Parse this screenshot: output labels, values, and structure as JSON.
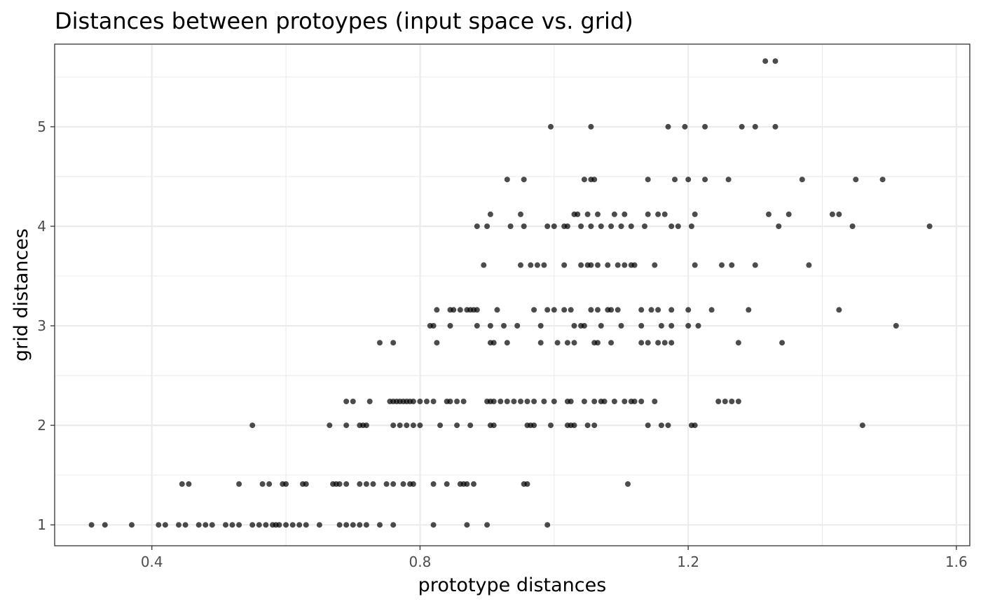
{
  "chart_data": {
    "type": "scatter",
    "title": "Distances between protoypes (input space vs. grid)",
    "xlabel": "prototype distances",
    "ylabel": "grid distances",
    "xlim": [
      0.255,
      1.62
    ],
    "ylim": [
      0.79,
      5.83
    ],
    "x_ticks": [
      0.4,
      0.8,
      1.2,
      1.6
    ],
    "x_tick_labels": [
      "0.4",
      "0.8",
      "1.2",
      "1.6"
    ],
    "y_ticks": [
      1,
      2,
      3,
      4,
      5
    ],
    "y_tick_labels": [
      "1",
      "2",
      "3",
      "4",
      "5"
    ],
    "grid": true,
    "point_color": "#000000",
    "point_opacity": 0.7,
    "series": [
      {
        "x": [
          0.31,
          0.33,
          0.37,
          0.41,
          0.42,
          0.44,
          0.45,
          0.47,
          0.48,
          0.49,
          0.51,
          0.52,
          0.53,
          0.55,
          0.56,
          0.57,
          0.58,
          0.585,
          0.59,
          0.6,
          0.61,
          0.62,
          0.63,
          0.65,
          0.68,
          0.69,
          0.7,
          0.71,
          0.72,
          0.74,
          0.76,
          0.82,
          0.87,
          0.9,
          0.99,
          0.445,
          0.455,
          0.53,
          0.565,
          0.575,
          0.595,
          0.6,
          0.625,
          0.63,
          0.67,
          0.675,
          0.68,
          0.69,
          0.71,
          0.72,
          0.73,
          0.75,
          0.76,
          0.775,
          0.785,
          0.79,
          0.82,
          0.84,
          0.86,
          0.865,
          0.87,
          0.88,
          0.955,
          0.96,
          1.11,
          0.55,
          0.665,
          0.69,
          0.71,
          0.715,
          0.72,
          0.76,
          0.77,
          0.78,
          0.79,
          0.8,
          0.83,
          0.855,
          0.875,
          0.905,
          0.91,
          0.96,
          0.965,
          0.97,
          0.995,
          1.02,
          1.025,
          1.03,
          1.05,
          1.06,
          1.14,
          1.16,
          1.17,
          1.205,
          1.21,
          1.46,
          0.69,
          0.7,
          0.725,
          0.755,
          0.76,
          0.765,
          0.77,
          0.775,
          0.78,
          0.785,
          0.79,
          0.8,
          0.81,
          0.82,
          0.84,
          0.845,
          0.855,
          0.865,
          0.9,
          0.905,
          0.91,
          0.92,
          0.93,
          0.94,
          0.95,
          0.96,
          0.97,
          0.985,
          1.0,
          1.02,
          1.025,
          1.045,
          1.06,
          1.07,
          1.075,
          1.09,
          1.105,
          1.115,
          1.12,
          1.13,
          1.15,
          1.245,
          1.255,
          1.265,
          1.275,
          0.74,
          0.76,
          0.825,
          0.905,
          0.91,
          0.93,
          0.98,
          1.005,
          1.02,
          1.03,
          1.06,
          1.065,
          1.085,
          1.13,
          1.14,
          1.155,
          1.165,
          1.175,
          1.275,
          1.34,
          0.815,
          0.82,
          0.845,
          0.885,
          0.905,
          0.925,
          0.945,
          0.98,
          1.03,
          1.04,
          1.045,
          1.07,
          1.1,
          1.13,
          1.16,
          1.175,
          1.2,
          1.215,
          1.51,
          0.825,
          0.845,
          0.85,
          0.86,
          0.87,
          0.875,
          0.88,
          0.885,
          0.915,
          0.97,
          0.99,
          1.0,
          1.015,
          1.025,
          1.055,
          1.065,
          1.08,
          1.085,
          1.095,
          1.13,
          1.145,
          1.155,
          1.175,
          1.2,
          1.235,
          1.29,
          1.425,
          0.895,
          0.95,
          0.965,
          0.975,
          0.985,
          1.015,
          1.04,
          1.05,
          1.055,
          1.065,
          1.08,
          1.095,
          1.105,
          1.115,
          1.12,
          1.15,
          1.21,
          1.25,
          1.265,
          1.3,
          1.38,
          0.885,
          0.9,
          0.935,
          0.955,
          0.99,
          1.0,
          1.015,
          1.02,
          1.04,
          1.055,
          1.07,
          1.085,
          1.1,
          1.115,
          1.135,
          1.175,
          1.185,
          1.205,
          1.335,
          1.445,
          1.56,
          0.905,
          0.95,
          1.03,
          1.035,
          1.05,
          1.065,
          1.09,
          1.105,
          1.14,
          1.155,
          1.165,
          1.21,
          1.32,
          1.35,
          1.415,
          1.425,
          0.93,
          0.955,
          1.045,
          1.055,
          1.06,
          1.14,
          1.18,
          1.2,
          1.225,
          1.26,
          1.37,
          1.45,
          1.49,
          0.995,
          1.055,
          1.17,
          1.195,
          1.225,
          1.28,
          1.3,
          1.33,
          1.315,
          1.33
        ],
        "y": [
          1,
          1,
          1,
          1,
          1,
          1,
          1,
          1,
          1,
          1,
          1,
          1,
          1,
          1,
          1,
          1,
          1,
          1,
          1,
          1,
          1,
          1,
          1,
          1,
          1,
          1,
          1,
          1,
          1,
          1,
          1,
          1,
          1,
          1,
          1,
          1.41,
          1.41,
          1.41,
          1.41,
          1.41,
          1.41,
          1.41,
          1.41,
          1.41,
          1.41,
          1.41,
          1.41,
          1.41,
          1.41,
          1.41,
          1.41,
          1.41,
          1.41,
          1.41,
          1.41,
          1.41,
          1.41,
          1.41,
          1.41,
          1.41,
          1.41,
          1.41,
          1.41,
          1.41,
          1.41,
          2,
          2,
          2,
          2,
          2,
          2,
          2,
          2,
          2,
          2,
          2,
          2,
          2,
          2,
          2,
          2,
          2,
          2,
          2,
          2,
          2,
          2,
          2,
          2,
          2,
          2,
          2,
          2,
          2,
          2,
          2,
          2.24,
          2.24,
          2.24,
          2.24,
          2.24,
          2.24,
          2.24,
          2.24,
          2.24,
          2.24,
          2.24,
          2.24,
          2.24,
          2.24,
          2.24,
          2.24,
          2.24,
          2.24,
          2.24,
          2.24,
          2.24,
          2.24,
          2.24,
          2.24,
          2.24,
          2.24,
          2.24,
          2.24,
          2.24,
          2.24,
          2.24,
          2.24,
          2.24,
          2.24,
          2.24,
          2.24,
          2.24,
          2.24,
          2.24,
          2.24,
          2.24,
          2.24,
          2.24,
          2.24,
          2.24,
          2.83,
          2.83,
          2.83,
          2.83,
          2.83,
          2.83,
          2.83,
          2.83,
          2.83,
          2.83,
          2.83,
          2.83,
          2.83,
          2.83,
          2.83,
          2.83,
          2.83,
          2.83,
          2.83,
          2.83,
          3,
          3,
          3,
          3,
          3,
          3,
          3,
          3,
          3,
          3,
          3,
          3,
          3,
          3,
          3,
          3,
          3,
          3,
          3,
          3.16,
          3.16,
          3.16,
          3.16,
          3.16,
          3.16,
          3.16,
          3.16,
          3.16,
          3.16,
          3.16,
          3.16,
          3.16,
          3.16,
          3.16,
          3.16,
          3.16,
          3.16,
          3.16,
          3.16,
          3.16,
          3.16,
          3.16,
          3.16,
          3.16,
          3.16,
          3.16,
          3.61,
          3.61,
          3.61,
          3.61,
          3.61,
          3.61,
          3.61,
          3.61,
          3.61,
          3.61,
          3.61,
          3.61,
          3.61,
          3.61,
          3.61,
          3.61,
          3.61,
          3.61,
          3.61,
          3.61,
          3.61,
          4,
          4,
          4,
          4,
          4,
          4,
          4,
          4,
          4,
          4,
          4,
          4,
          4,
          4,
          4,
          4,
          4,
          4,
          4,
          4,
          4,
          4.12,
          4.12,
          4.12,
          4.12,
          4.12,
          4.12,
          4.12,
          4.12,
          4.12,
          4.12,
          4.12,
          4.12,
          4.12,
          4.12,
          4.12,
          4.12,
          4.47,
          4.47,
          4.47,
          4.47,
          4.47,
          4.47,
          4.47,
          4.47,
          4.47,
          4.47,
          4.47,
          4.47,
          4.47,
          5,
          5,
          5,
          5,
          5,
          5,
          5,
          5,
          5.66,
          5.66
        ]
      }
    ]
  }
}
